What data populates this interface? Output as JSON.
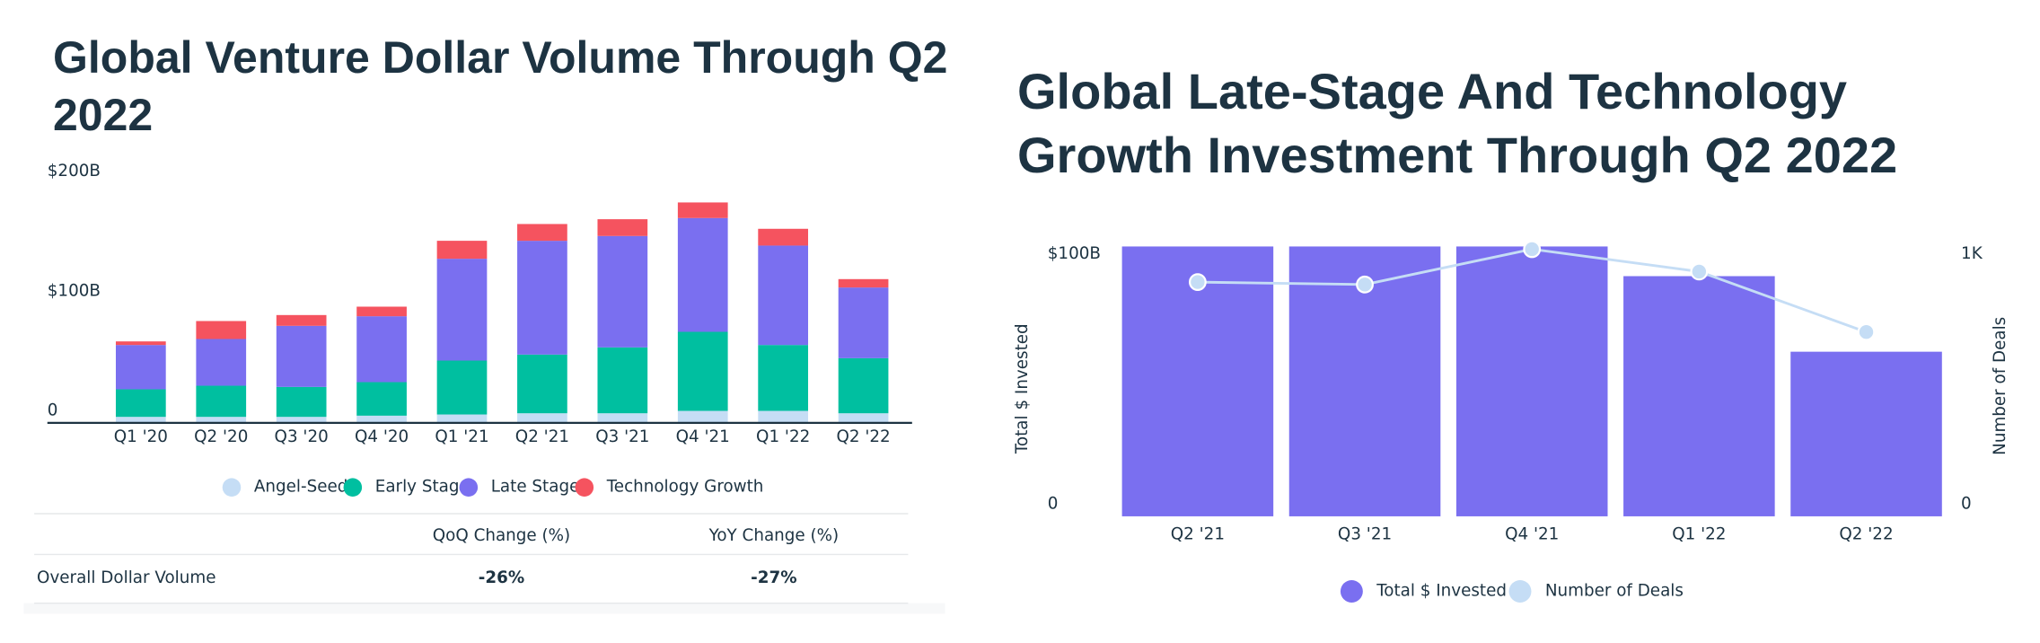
{
  "chart_data": [
    {
      "type": "stacked_bar",
      "title": "Global Venture Dollar Volume Through Q2 2022",
      "categories": [
        "Q1 '20",
        "Q2 '20",
        "Q3 '20",
        "Q4 '20",
        "Q1 '21",
        "Q2 '21",
        "Q3 '21",
        "Q4 '21",
        "Q1 '22",
        "Q2 '22"
      ],
      "series": [
        {
          "name": "Angel-Seed",
          "color": "#c5ddf5",
          "values": [
            5,
            5,
            5,
            6,
            7,
            8,
            8,
            10,
            10,
            8
          ]
        },
        {
          "name": "Early Stage",
          "color": "#00bfa0",
          "values": [
            23,
            26,
            25,
            28,
            45,
            49,
            55,
            66,
            55,
            46
          ]
        },
        {
          "name": "Late Stage",
          "color": "#7a6ff0",
          "values": [
            37,
            39,
            51,
            55,
            85,
            95,
            93,
            95,
            83,
            59
          ]
        },
        {
          "name": "Technology Growth",
          "color": "#f5535f",
          "values": [
            3,
            15,
            9,
            8,
            15,
            14,
            14,
            13,
            14,
            7
          ]
        }
      ],
      "ylim": [
        0,
        200
      ],
      "yticks": [
        {
          "value": 0,
          "label": "0"
        },
        {
          "value": 100,
          "label": "$100B"
        },
        {
          "value": 200,
          "label": "$200B"
        }
      ],
      "grid": false,
      "legend": "bottom"
    },
    {
      "type": "bar_line",
      "title": "Global Late-Stage And Technology Growth Investment Through Q2 2022",
      "categories": [
        "Q2 '21",
        "Q3 '21",
        "Q4 '21",
        "Q1 '22",
        "Q2 '22"
      ],
      "series": [
        {
          "name": "Total $ Invested",
          "color": "#7a6ff0",
          "values": [
            100,
            100,
            100,
            89,
            61
          ]
        },
        {
          "name": "Number of Deals",
          "color": "#c5ddf5",
          "axis": "y2",
          "values": [
            868,
            859,
            990,
            907,
            683
          ]
        }
      ],
      "y_label": "Total $ Invested",
      "y2_label": "Number of Deals",
      "ylim": [
        0,
        100
      ],
      "yticks": [
        {
          "value": 0,
          "label": "0"
        },
        {
          "value": 100,
          "label": "$100B"
        }
      ],
      "y2lim": [
        0,
        1000
      ],
      "y2ticks": [
        {
          "value": 0,
          "label": "0"
        },
        {
          "value": 1000,
          "label": "1K"
        }
      ],
      "grid": false,
      "legend": "bottom"
    }
  ],
  "table": {
    "header": [
      "QoQ Change (%)",
      "YoY Change (%)"
    ],
    "rows": [
      [
        "Overall Dollar Volume",
        "-26%",
        "-27%"
      ]
    ]
  }
}
